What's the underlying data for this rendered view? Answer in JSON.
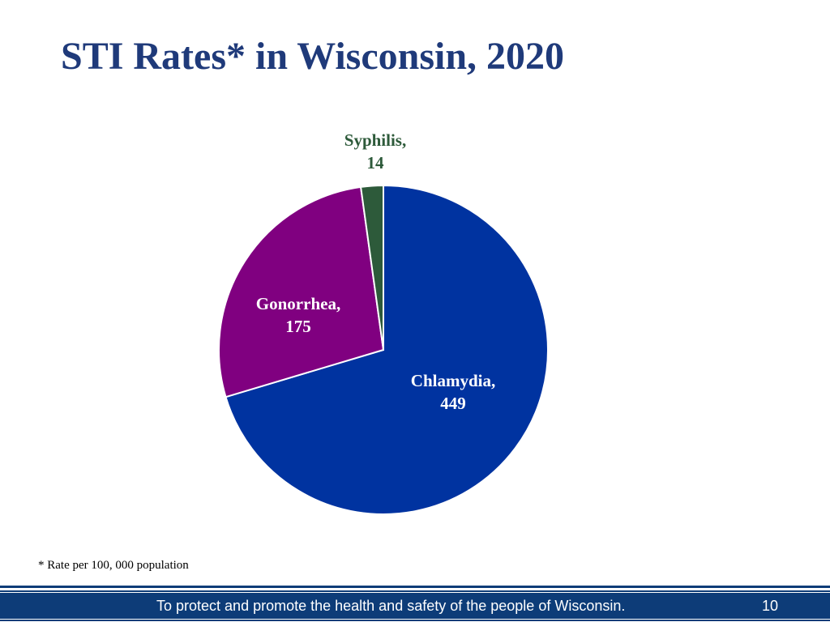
{
  "slide": {
    "title": "STI Rates* in Wisconsin, 2020",
    "footnote": "* Rate per 100, 000 population",
    "footer_text": "To protect and promote the health and safety of the people of Wisconsin.",
    "slide_number": "10"
  },
  "colors": {
    "title": "#1f3a7a",
    "footer_bar": "#0d3c78"
  },
  "chart_data": {
    "type": "pie",
    "title": "",
    "slices": [
      {
        "label": "Chlamydia",
        "value": 449,
        "label_text": "Chlamydia,",
        "value_text": "449",
        "color": "#0033a0",
        "label_color": "#ffffff"
      },
      {
        "label": "Gonorrhea",
        "value": 175,
        "label_text": "Gonorrhea,",
        "value_text": "175",
        "color": "#800080",
        "label_color": "#ffffff"
      },
      {
        "label": "Syphilis",
        "value": 14,
        "label_text": "Syphilis,",
        "value_text": "14",
        "color": "#2d5a3a",
        "label_color": "#2d5a3a"
      }
    ],
    "start": "12 o'clock",
    "direction": "clockwise",
    "legend": "none"
  }
}
